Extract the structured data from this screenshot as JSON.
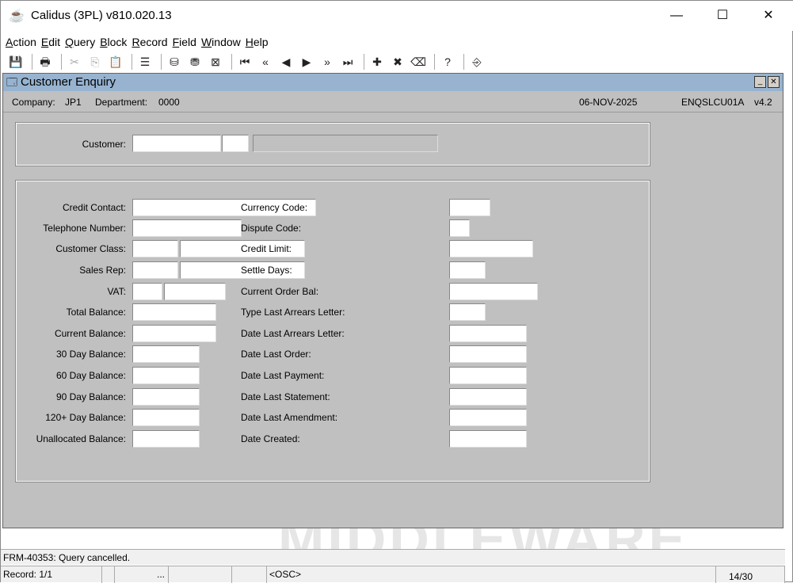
{
  "window": {
    "title": "Calidus (3PL) v810.020.13",
    "min": "—",
    "max": "☐",
    "close": "✕"
  },
  "menu": [
    "Action",
    "Edit",
    "Query",
    "Block",
    "Record",
    "Field",
    "Window",
    "Help"
  ],
  "toolbar": [
    {
      "icon": "save-icon",
      "g": "💾"
    },
    {
      "sep": true
    },
    {
      "icon": "print-icon",
      "g": "🖶"
    },
    {
      "sep": true
    },
    {
      "icon": "cut-icon",
      "g": "✂",
      "dis": true
    },
    {
      "icon": "copy-icon",
      "g": "⎘",
      "dis": true
    },
    {
      "icon": "paste-icon",
      "g": "📋",
      "dis": true
    },
    {
      "sep": true
    },
    {
      "icon": "list-icon",
      "g": "☰"
    },
    {
      "sep": true
    },
    {
      "icon": "enter-query-icon",
      "g": "⛁"
    },
    {
      "icon": "execute-query-icon",
      "g": "⛃"
    },
    {
      "icon": "cancel-query-icon",
      "g": "⊠"
    },
    {
      "sep": true
    },
    {
      "icon": "first-record-icon",
      "g": "⏮"
    },
    {
      "icon": "previous-block-icon",
      "g": "«"
    },
    {
      "icon": "previous-record-icon",
      "g": "◀"
    },
    {
      "icon": "next-record-icon",
      "g": "▶"
    },
    {
      "icon": "next-block-icon",
      "g": "»"
    },
    {
      "icon": "last-record-icon",
      "g": "⏭"
    },
    {
      "sep": true
    },
    {
      "icon": "insert-record-icon",
      "g": "✚"
    },
    {
      "icon": "delete-record-icon",
      "g": "✖"
    },
    {
      "icon": "clear-record-icon",
      "g": "⌫"
    },
    {
      "sep": true
    },
    {
      "icon": "help-icon",
      "g": "?"
    },
    {
      "sep": true
    },
    {
      "icon": "exit-icon",
      "g": "⎆"
    }
  ],
  "form": {
    "title": "Customer Enquiry",
    "company_label": "Company:",
    "company": "JP1",
    "department_label": "Department:",
    "department": "0000",
    "date": "06-NOV-2025",
    "form_code": "ENQSLCU01A",
    "version": "v4.2",
    "min": "_",
    "close": "✕"
  },
  "customer": {
    "label": "Customer:",
    "code": "",
    "suffix": "",
    "name": ""
  },
  "left_fields": [
    {
      "label": "Credit Contact:",
      "values": [
        ""
      ]
    },
    {
      "label": "Telephone Number:",
      "values": [
        ""
      ]
    },
    {
      "label": "Customer Class:",
      "values": [
        "",
        ""
      ]
    },
    {
      "label": "Sales Rep:",
      "values": [
        "",
        ""
      ]
    },
    {
      "label": "VAT:",
      "values": [
        "",
        ""
      ]
    },
    {
      "label": "Total Balance:",
      "values": [
        ""
      ]
    },
    {
      "label": "Current Balance:",
      "values": [
        ""
      ]
    },
    {
      "label": "30 Day Balance:",
      "values": [
        ""
      ]
    },
    {
      "label": "60 Day Balance:",
      "values": [
        ""
      ]
    },
    {
      "label": "90 Day Balance:",
      "values": [
        ""
      ]
    },
    {
      "label": "120+ Day Balance:",
      "values": [
        ""
      ]
    },
    {
      "label": "Unallocated Balance:",
      "values": [
        ""
      ]
    }
  ],
  "right_fields": [
    {
      "label": "Currency Code:",
      "value": ""
    },
    {
      "label": "Dispute Code:",
      "value": ""
    },
    {
      "label": "Credit Limit:",
      "value": ""
    },
    {
      "label": "Settle Days:",
      "value": ""
    },
    {
      "label": "Current Order Bal:",
      "value": ""
    },
    {
      "label": "Type Last Arrears Letter:",
      "value": ""
    },
    {
      "label": "Date Last Arrears Letter:",
      "value": ""
    },
    {
      "label": "Date Last Order:",
      "value": ""
    },
    {
      "label": "Date Last Payment:",
      "value": ""
    },
    {
      "label": "Date Last Statement:",
      "value": ""
    },
    {
      "label": "Date Last Amendment:",
      "value": ""
    },
    {
      "label": "Date Created:",
      "value": ""
    }
  ],
  "watermark": "MIDDLEWARE",
  "status": {
    "message": "FRM-40353:  Query cancelled.",
    "record": "Record: 1/1",
    "ellipsis": "...",
    "mode": "<OSC>",
    "count": "14/30"
  }
}
